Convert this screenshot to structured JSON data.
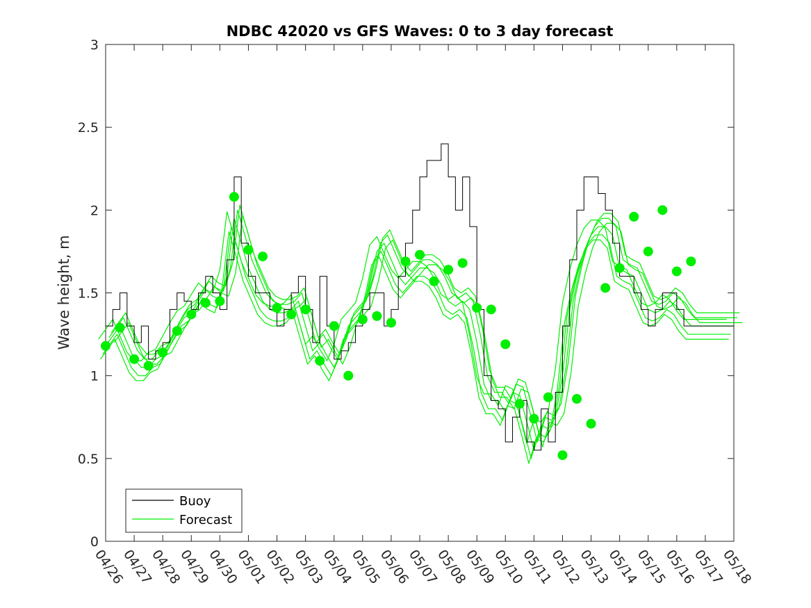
{
  "chart_data": {
    "type": "line",
    "title": "NDBC 42020 vs GFS Waves: 0 to 3 day forecast",
    "xlabel": "",
    "ylabel": "Wave height, m",
    "ylim": [
      0,
      3
    ],
    "yticks": [
      0,
      0.5,
      1,
      1.5,
      2,
      2.5,
      3
    ],
    "ytick_labels": [
      "0",
      "0.5",
      "1",
      "1.5",
      "2",
      "2.5",
      "3"
    ],
    "xlim_day": [
      0,
      22
    ],
    "xtick_labels": [
      "04/26",
      "04/27",
      "04/28",
      "04/29",
      "04/30",
      "05/01",
      "05/02",
      "05/03",
      "05/04",
      "05/05",
      "05/06",
      "05/07",
      "05/08",
      "05/09",
      "05/10",
      "05/11",
      "05/12",
      "05/13",
      "05/14",
      "05/15",
      "05/16",
      "05/17",
      "05/18"
    ],
    "grid": false,
    "legend_position": "bottom-left",
    "colors": {
      "buoy": "#000000",
      "forecast": "#00ee00"
    },
    "series": [
      {
        "name": "Buoy",
        "x": [
          0,
          0.25,
          0.5,
          0.75,
          1,
          1.25,
          1.5,
          1.75,
          2,
          2.25,
          2.5,
          2.75,
          3,
          3.25,
          3.5,
          3.75,
          4,
          4.25,
          4.5,
          4.75,
          5,
          5.25,
          5.5,
          5.75,
          6,
          6.25,
          6.5,
          6.75,
          7,
          7.25,
          7.5,
          7.75,
          8,
          8.25,
          8.5,
          8.75,
          9,
          9.25,
          9.5,
          9.75,
          10,
          10.25,
          10.5,
          10.75,
          11,
          11.25,
          11.5,
          11.75,
          12,
          12.25,
          12.5,
          12.75,
          13,
          13.25,
          13.5,
          13.75,
          14,
          14.25,
          14.5,
          14.75,
          15,
          15.25,
          15.5,
          15.75,
          16,
          16.25,
          16.5,
          16.75,
          17,
          17.25,
          17.5,
          17.75,
          18,
          18.25,
          18.5,
          18.75,
          19,
          19.25,
          19.5,
          19.75,
          20,
          20.25,
          20.5,
          20.75,
          21,
          21.25,
          21.5,
          21.75,
          22
        ],
        "values": [
          1.3,
          1.4,
          1.5,
          1.3,
          1.2,
          1.3,
          1.1,
          1.15,
          1.2,
          1.4,
          1.5,
          1.45,
          1.4,
          1.5,
          1.6,
          1.5,
          1.4,
          1.7,
          2.2,
          1.8,
          1.6,
          1.5,
          1.5,
          1.4,
          1.3,
          1.4,
          1.5,
          1.6,
          1.4,
          1.2,
          1.6,
          1.3,
          1.1,
          1.15,
          1.2,
          1.3,
          1.4,
          1.5,
          1.5,
          1.3,
          1.4,
          1.6,
          1.8,
          2.0,
          2.2,
          2.3,
          2.3,
          2.4,
          2.2,
          2.0,
          2.2,
          1.9,
          1.4,
          1.0,
          0.85,
          0.8,
          0.6,
          0.75,
          0.85,
          0.6,
          0.55,
          0.8,
          0.6,
          0.9,
          1.3,
          1.7,
          2.0,
          2.2,
          2.2,
          2.1,
          2.0,
          1.8,
          1.6,
          1.6,
          1.5,
          1.4,
          1.3,
          1.4,
          1.5,
          1.5,
          1.4,
          1.3,
          1.3,
          1.3,
          1.3,
          1.3,
          1.3,
          1.3,
          1.3
        ]
      },
      {
        "name": "Forecast",
        "x": [
          0,
          0.25,
          0.5,
          0.75,
          1,
          1.25,
          1.5,
          1.75,
          2,
          2.25,
          2.5,
          2.75,
          3,
          3.25,
          3.5,
          3.75,
          4,
          4.25,
          4.5,
          4.75,
          5,
          5.25,
          5.5,
          5.75,
          6,
          6.25,
          6.5,
          6.75,
          7,
          7.25,
          7.5,
          7.75,
          8,
          8.25,
          8.5,
          8.75,
          9,
          9.25,
          9.5,
          9.75,
          10,
          10.25,
          10.5,
          10.75,
          11,
          11.25,
          11.5,
          11.75,
          12,
          12.25,
          12.5,
          12.75,
          13,
          13.25,
          13.5,
          13.75,
          14,
          14.25,
          14.5,
          14.75,
          15,
          15.25,
          15.5,
          15.75,
          16,
          16.25,
          16.5,
          16.75,
          17,
          17.25,
          17.5,
          17.75,
          18,
          18.25,
          18.5,
          18.75,
          19,
          19.25,
          19.5,
          19.75,
          20,
          20.25,
          20.5,
          20.75,
          21,
          21.25,
          21.5,
          21.75,
          22
        ],
        "values": [
          1.18,
          1.24,
          1.3,
          1.2,
          1.1,
          1.05,
          1.05,
          1.1,
          1.12,
          1.2,
          1.28,
          1.35,
          1.38,
          1.45,
          1.52,
          1.48,
          1.46,
          1.6,
          1.95,
          1.8,
          1.65,
          1.55,
          1.45,
          1.4,
          1.38,
          1.38,
          1.4,
          1.45,
          1.3,
          1.15,
          1.2,
          1.12,
          1.05,
          1.15,
          1.3,
          1.35,
          1.4,
          1.55,
          1.75,
          1.8,
          1.7,
          1.6,
          1.55,
          1.6,
          1.65,
          1.65,
          1.62,
          1.55,
          1.45,
          1.42,
          1.45,
          1.4,
          1.2,
          0.95,
          0.85,
          0.85,
          0.78,
          0.9,
          0.88,
          0.72,
          0.55,
          0.7,
          0.68,
          0.75,
          1.0,
          1.4,
          1.6,
          1.75,
          1.85,
          1.9,
          1.9,
          1.85,
          1.65,
          1.62,
          1.6,
          1.5,
          1.4,
          1.38,
          1.4,
          1.45,
          1.42,
          1.35,
          1.3,
          1.3,
          1.3,
          1.3,
          1.3,
          1.3,
          1.3
        ],
        "markers": {
          "x": [
            0,
            0.5,
            1,
            1.5,
            2,
            2.5,
            3,
            3.5,
            4,
            4.5,
            5,
            5.5,
            6,
            6.5,
            7,
            7.5,
            8,
            8.5,
            9,
            9.5,
            10,
            10.5,
            11,
            11.5,
            12,
            12.5,
            13,
            13.5,
            14,
            14.5,
            15,
            15.5,
            16,
            16.5,
            17,
            17.5,
            18,
            18.5,
            19,
            19.5,
            20,
            20.5
          ],
          "values": [
            1.18,
            1.29,
            1.1,
            1.06,
            1.14,
            1.27,
            1.37,
            1.44,
            1.45,
            2.08,
            1.76,
            1.72,
            1.41,
            1.37,
            1.4,
            1.09,
            1.3,
            1.0,
            1.34,
            1.36,
            1.32,
            1.69,
            1.73,
            1.57,
            1.64,
            1.68,
            1.41,
            1.4,
            1.19,
            0.83,
            0.74,
            0.87,
            0.52,
            0.86,
            0.71,
            1.53,
            1.65,
            1.96,
            1.75,
            2.0,
            1.63,
            1.69
          ]
        }
      }
    ]
  }
}
